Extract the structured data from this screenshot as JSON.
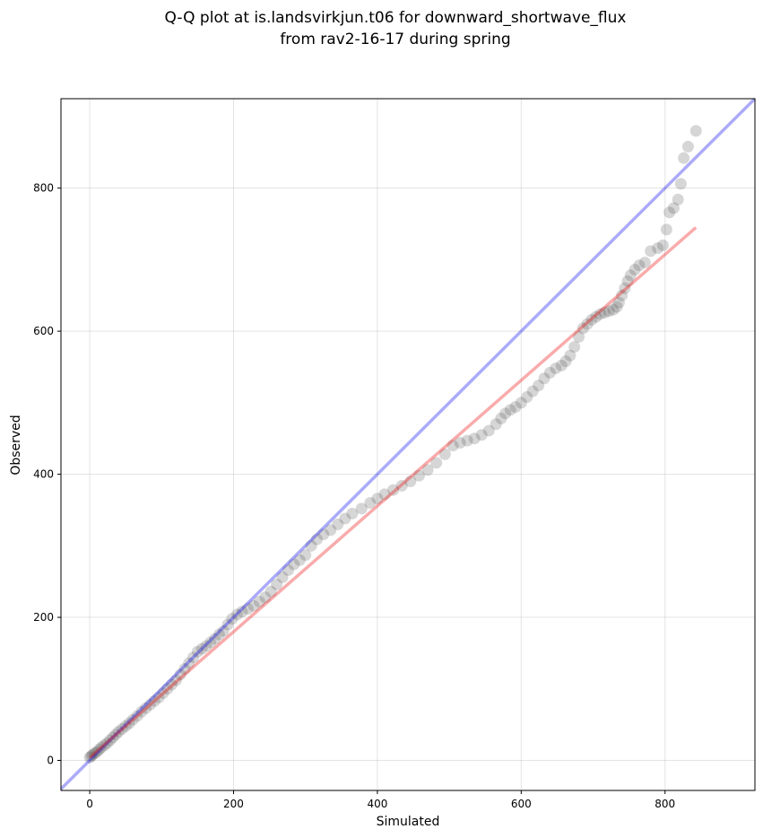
{
  "chart_data": {
    "type": "scatter",
    "title_line1": "Q-Q plot at is.landsvirkjun.t06 for downward_shortwave_flux",
    "title_line2": "from rav2-16-17 during spring",
    "xlabel": "Simulated",
    "ylabel": "Observed",
    "xlim": [
      -40,
      925
    ],
    "ylim": [
      -42,
      925
    ],
    "xticks": [
      0,
      200,
      400,
      600,
      800
    ],
    "yticks": [
      0,
      200,
      400,
      600,
      800
    ],
    "grid": true,
    "identity_line": {
      "from": [
        -40,
        -40
      ],
      "to": [
        925,
        925
      ],
      "color": "#0000ee"
    },
    "fit_line": {
      "from": [
        0,
        4
      ],
      "to": [
        843,
        745
      ],
      "color": "#ee0000"
    },
    "scatter_color": "#444444",
    "series": [
      {
        "name": "quantiles",
        "points": [
          [
            0,
            4
          ],
          [
            2,
            6
          ],
          [
            4,
            8
          ],
          [
            7,
            10
          ],
          [
            10,
            12
          ],
          [
            13,
            15
          ],
          [
            16,
            18
          ],
          [
            20,
            21
          ],
          [
            24,
            24
          ],
          [
            28,
            28
          ],
          [
            32,
            32
          ],
          [
            36,
            36
          ],
          [
            40,
            40
          ],
          [
            45,
            44
          ],
          [
            50,
            48
          ],
          [
            55,
            52
          ],
          [
            60,
            57
          ],
          [
            66,
            62
          ],
          [
            72,
            68
          ],
          [
            78,
            73
          ],
          [
            84,
            78
          ],
          [
            90,
            83
          ],
          [
            96,
            88
          ],
          [
            102,
            94
          ],
          [
            108,
            100
          ],
          [
            114,
            106
          ],
          [
            120,
            112
          ],
          [
            126,
            120
          ],
          [
            132,
            128
          ],
          [
            138,
            136
          ],
          [
            144,
            144
          ],
          [
            150,
            152
          ],
          [
            156,
            156
          ],
          [
            162,
            160
          ],
          [
            168,
            165
          ],
          [
            174,
            170
          ],
          [
            180,
            176
          ],
          [
            186,
            181
          ],
          [
            192,
            190
          ],
          [
            198,
            198
          ],
          [
            205,
            204
          ],
          [
            212,
            208
          ],
          [
            220,
            212
          ],
          [
            228,
            216
          ],
          [
            236,
            222
          ],
          [
            244,
            228
          ],
          [
            252,
            236
          ],
          [
            260,
            246
          ],
          [
            268,
            256
          ],
          [
            276,
            266
          ],
          [
            284,
            274
          ],
          [
            292,
            280
          ],
          [
            300,
            287
          ],
          [
            308,
            300
          ],
          [
            316,
            309
          ],
          [
            325,
            316
          ],
          [
            335,
            322
          ],
          [
            345,
            330
          ],
          [
            355,
            338
          ],
          [
            365,
            345
          ],
          [
            378,
            352
          ],
          [
            390,
            360
          ],
          [
            400,
            366
          ],
          [
            410,
            372
          ],
          [
            422,
            378
          ],
          [
            434,
            384
          ],
          [
            446,
            390
          ],
          [
            458,
            398
          ],
          [
            470,
            406
          ],
          [
            482,
            416
          ],
          [
            494,
            428
          ],
          [
            505,
            440
          ],
          [
            515,
            444
          ],
          [
            525,
            447
          ],
          [
            535,
            450
          ],
          [
            545,
            455
          ],
          [
            555,
            461
          ],
          [
            565,
            470
          ],
          [
            572,
            478
          ],
          [
            578,
            485
          ],
          [
            585,
            490
          ],
          [
            592,
            494
          ],
          [
            600,
            500
          ],
          [
            608,
            508
          ],
          [
            616,
            516
          ],
          [
            624,
            524
          ],
          [
            632,
            534
          ],
          [
            640,
            542
          ],
          [
            648,
            548
          ],
          [
            656,
            552
          ],
          [
            662,
            558
          ],
          [
            668,
            566
          ],
          [
            674,
            578
          ],
          [
            680,
            592
          ],
          [
            686,
            604
          ],
          [
            692,
            610
          ],
          [
            698,
            616
          ],
          [
            704,
            620
          ],
          [
            710,
            624
          ],
          [
            716,
            626
          ],
          [
            722,
            628
          ],
          [
            728,
            630
          ],
          [
            733,
            634
          ],
          [
            736,
            640
          ],
          [
            740,
            650
          ],
          [
            744,
            660
          ],
          [
            748,
            670
          ],
          [
            752,
            678
          ],
          [
            758,
            686
          ],
          [
            764,
            692
          ],
          [
            772,
            696
          ],
          [
            780,
            712
          ],
          [
            790,
            716
          ],
          [
            797,
            720
          ],
          [
            802,
            742
          ],
          [
            806,
            766
          ],
          [
            812,
            772
          ],
          [
            818,
            784
          ],
          [
            822,
            806
          ],
          [
            826,
            842
          ],
          [
            832,
            858
          ],
          [
            843,
            880
          ]
        ]
      }
    ]
  }
}
